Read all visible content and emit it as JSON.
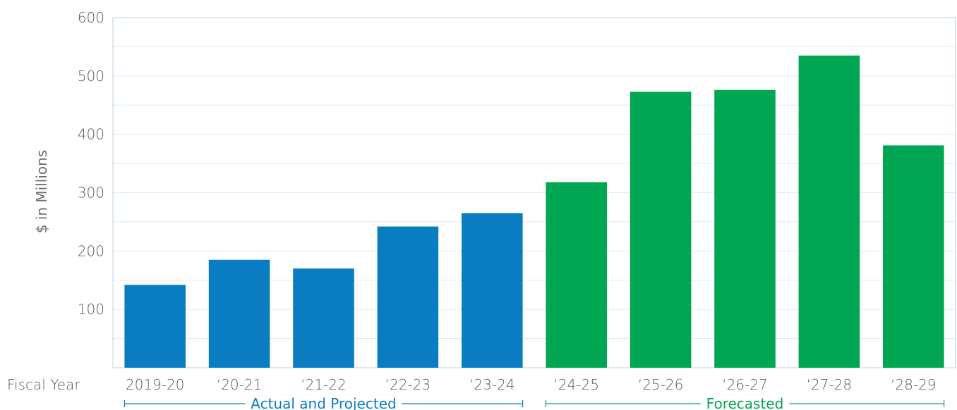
{
  "chart_data": {
    "type": "bar",
    "title": "",
    "xlabel": "Fiscal Year",
    "ylabel": "$ in Millions",
    "ylim": [
      0,
      600
    ],
    "yticks": [
      100,
      200,
      300,
      400,
      500,
      600
    ],
    "grid": true,
    "categories": [
      "2019-20",
      "‘20-21",
      "‘21-22",
      "‘22-23",
      "‘23-24",
      "‘24-25",
      "‘25-26",
      "‘26-27",
      "‘27-28",
      "‘28-29"
    ],
    "values": [
      142,
      185,
      170,
      242,
      265,
      318,
      473,
      476,
      535,
      381
    ],
    "groups": [
      {
        "label": "Actual and Projected",
        "start": 0,
        "end": 4,
        "color": "#0a7cc1"
      },
      {
        "label": "Forecasted",
        "start": 5,
        "end": 9,
        "color": "#00a651"
      }
    ]
  },
  "colors": {
    "grid": "#dfeaf4",
    "frame": "#b8d3ea",
    "tick_text": "#58595b"
  }
}
